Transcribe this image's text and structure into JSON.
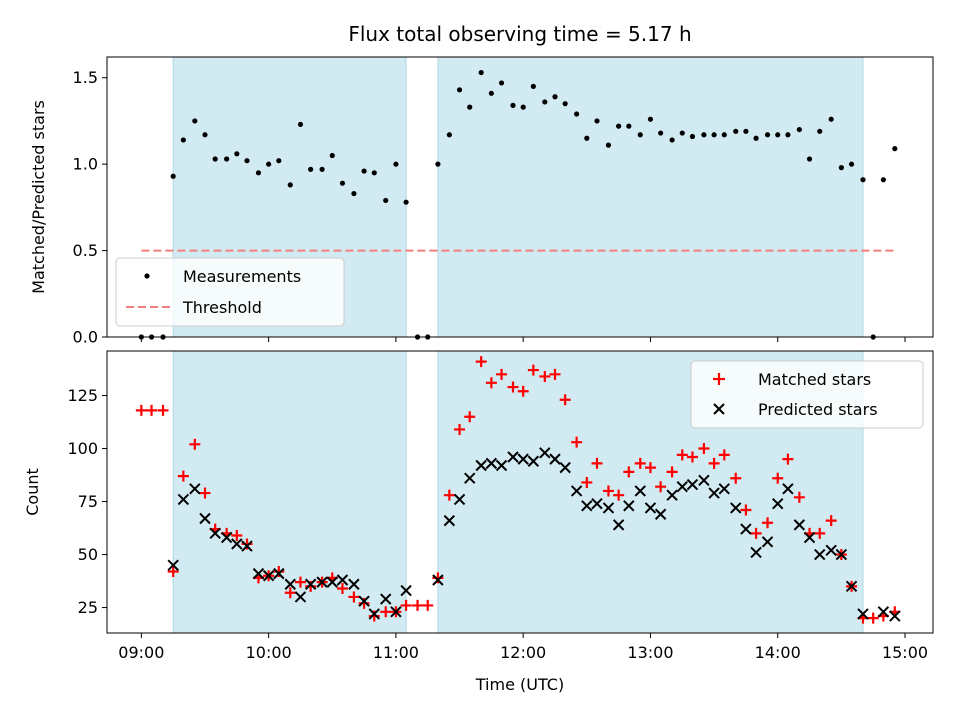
{
  "chart_data": {
    "type": "scatter",
    "title": "Flux total observing time = 5.17 h",
    "xlabel": "Time (UTC)",
    "x_unit": "hours UTC",
    "xlim": [
      8.73,
      15.22
    ],
    "x_ticks": [
      9,
      10,
      11,
      12,
      13,
      14,
      15
    ],
    "x_tick_labels": [
      "09:00",
      "10:00",
      "11:00",
      "12:00",
      "13:00",
      "14:00",
      "15:00"
    ],
    "shaded_intervals": [
      [
        9.25,
        11.08
      ],
      [
        11.33,
        14.67
      ]
    ],
    "shade_color": "#add8e6",
    "panels": [
      {
        "ylabel": "Matched/Predicted stars",
        "ylim": [
          0,
          1.62
        ],
        "y_ticks": [
          0.0,
          0.5,
          1.0,
          1.5
        ],
        "y_tick_labels": [
          "0.0",
          "0.5",
          "1.0",
          "1.5"
        ],
        "legend_position": "lower-left",
        "series": [
          {
            "name": "Measurements",
            "marker": "dot",
            "color": "#000000",
            "points": [
              [
                9.0,
                0.0
              ],
              [
                9.08,
                0.0
              ],
              [
                9.17,
                0.0
              ],
              [
                9.25,
                0.93
              ],
              [
                9.33,
                1.14
              ],
              [
                9.42,
                1.25
              ],
              [
                9.5,
                1.17
              ],
              [
                9.58,
                1.03
              ],
              [
                9.67,
                1.03
              ],
              [
                9.75,
                1.06
              ],
              [
                9.83,
                1.02
              ],
              [
                9.92,
                0.95
              ],
              [
                10.0,
                1.0
              ],
              [
                10.08,
                1.02
              ],
              [
                10.17,
                0.88
              ],
              [
                10.25,
                1.23
              ],
              [
                10.33,
                0.97
              ],
              [
                10.42,
                0.97
              ],
              [
                10.5,
                1.05
              ],
              [
                10.58,
                0.89
              ],
              [
                10.67,
                0.83
              ],
              [
                10.75,
                0.96
              ],
              [
                10.83,
                0.95
              ],
              [
                10.92,
                0.79
              ],
              [
                11.0,
                1.0
              ],
              [
                11.08,
                0.78
              ],
              [
                11.17,
                0.0
              ],
              [
                11.25,
                0.0
              ],
              [
                11.33,
                1.0
              ],
              [
                11.42,
                1.17
              ],
              [
                11.5,
                1.43
              ],
              [
                11.58,
                1.33
              ],
              [
                11.67,
                1.53
              ],
              [
                11.75,
                1.41
              ],
              [
                11.83,
                1.47
              ],
              [
                11.92,
                1.34
              ],
              [
                12.0,
                1.33
              ],
              [
                12.08,
                1.45
              ],
              [
                12.17,
                1.36
              ],
              [
                12.25,
                1.39
              ],
              [
                12.33,
                1.35
              ],
              [
                12.42,
                1.29
              ],
              [
                12.5,
                1.15
              ],
              [
                12.58,
                1.25
              ],
              [
                12.67,
                1.11
              ],
              [
                12.75,
                1.22
              ],
              [
                12.83,
                1.22
              ],
              [
                12.92,
                1.17
              ],
              [
                13.0,
                1.26
              ],
              [
                13.08,
                1.18
              ],
              [
                13.17,
                1.14
              ],
              [
                13.25,
                1.18
              ],
              [
                13.33,
                1.16
              ],
              [
                13.42,
                1.17
              ],
              [
                13.5,
                1.17
              ],
              [
                13.58,
                1.17
              ],
              [
                13.67,
                1.19
              ],
              [
                13.75,
                1.19
              ],
              [
                13.83,
                1.15
              ],
              [
                13.92,
                1.17
              ],
              [
                14.0,
                1.17
              ],
              [
                14.08,
                1.17
              ],
              [
                14.17,
                1.2
              ],
              [
                14.25,
                1.03
              ],
              [
                14.33,
                1.19
              ],
              [
                14.42,
                1.26
              ],
              [
                14.5,
                0.98
              ],
              [
                14.58,
                1.0
              ],
              [
                14.67,
                0.91
              ],
              [
                14.75,
                0.0
              ],
              [
                14.83,
                0.91
              ],
              [
                14.92,
                1.09
              ]
            ]
          },
          {
            "name": "Threshold",
            "marker": "dashed-line",
            "color": "#f08080",
            "points": [
              [
                9.0,
                0.5
              ],
              [
                14.92,
                0.5
              ]
            ]
          }
        ]
      },
      {
        "ylabel": "Count",
        "ylim": [
          13,
          146
        ],
        "y_ticks": [
          25,
          50,
          75,
          100,
          125
        ],
        "y_tick_labels": [
          "25",
          "50",
          "75",
          "100",
          "125"
        ],
        "legend_position": "upper-right",
        "series": [
          {
            "name": "Matched stars",
            "marker": "plus",
            "color": "#ff0000",
            "points": [
              [
                9.0,
                118
              ],
              [
                9.08,
                118
              ],
              [
                9.17,
                118
              ],
              [
                9.25,
                42
              ],
              [
                9.33,
                87
              ],
              [
                9.42,
                102
              ],
              [
                9.5,
                79
              ],
              [
                9.58,
                62
              ],
              [
                9.67,
                60
              ],
              [
                9.75,
                59
              ],
              [
                9.83,
                55
              ],
              [
                9.92,
                39
              ],
              [
                10.0,
                40
              ],
              [
                10.08,
                42
              ],
              [
                10.17,
                32
              ],
              [
                10.25,
                37
              ],
              [
                10.33,
                35
              ],
              [
                10.42,
                37
              ],
              [
                10.5,
                39
              ],
              [
                10.58,
                34
              ],
              [
                10.67,
                30
              ],
              [
                10.75,
                27
              ],
              [
                10.83,
                21
              ],
              [
                10.92,
                23
              ],
              [
                11.0,
                23
              ],
              [
                11.08,
                26
              ],
              [
                11.17,
                26
              ],
              [
                11.25,
                26
              ],
              [
                11.33,
                39
              ],
              [
                11.42,
                78
              ],
              [
                11.5,
                109
              ],
              [
                11.58,
                115
              ],
              [
                11.67,
                141
              ],
              [
                11.75,
                131
              ],
              [
                11.83,
                135
              ],
              [
                11.92,
                129
              ],
              [
                12.0,
                127
              ],
              [
                12.08,
                137
              ],
              [
                12.17,
                134
              ],
              [
                12.25,
                135
              ],
              [
                12.33,
                123
              ],
              [
                12.42,
                103
              ],
              [
                12.5,
                84
              ],
              [
                12.58,
                93
              ],
              [
                12.67,
                80
              ],
              [
                12.75,
                78
              ],
              [
                12.83,
                89
              ],
              [
                12.92,
                93
              ],
              [
                13.0,
                91
              ],
              [
                13.08,
                82
              ],
              [
                13.17,
                89
              ],
              [
                13.25,
                97
              ],
              [
                13.33,
                96
              ],
              [
                13.42,
                100
              ],
              [
                13.5,
                93
              ],
              [
                13.58,
                97
              ],
              [
                13.67,
                86
              ],
              [
                13.75,
                71
              ],
              [
                13.83,
                60
              ],
              [
                13.92,
                65
              ],
              [
                14.0,
                86
              ],
              [
                14.08,
                95
              ],
              [
                14.17,
                77
              ],
              [
                14.25,
                60
              ],
              [
                14.33,
                60
              ],
              [
                14.42,
                66
              ],
              [
                14.5,
                50
              ],
              [
                14.58,
                35
              ],
              [
                14.67,
                20
              ],
              [
                14.75,
                20
              ],
              [
                14.83,
                21
              ],
              [
                14.92,
                23
              ]
            ]
          },
          {
            "name": "Predicted stars",
            "marker": "x",
            "color": "#000000",
            "points": [
              [
                9.25,
                45
              ],
              [
                9.33,
                76
              ],
              [
                9.42,
                81
              ],
              [
                9.5,
                67
              ],
              [
                9.58,
                60
              ],
              [
                9.67,
                58
              ],
              [
                9.75,
                55
              ],
              [
                9.83,
                54
              ],
              [
                9.92,
                41
              ],
              [
                10.0,
                40
              ],
              [
                10.08,
                41
              ],
              [
                10.17,
                36
              ],
              [
                10.25,
                30
              ],
              [
                10.33,
                36
              ],
              [
                10.42,
                37
              ],
              [
                10.5,
                37
              ],
              [
                10.58,
                38
              ],
              [
                10.67,
                36
              ],
              [
                10.75,
                28
              ],
              [
                10.83,
                22
              ],
              [
                10.92,
                29
              ],
              [
                11.0,
                23
              ],
              [
                11.08,
                33
              ],
              [
                11.33,
                38
              ],
              [
                11.42,
                66
              ],
              [
                11.5,
                76
              ],
              [
                11.58,
                86
              ],
              [
                11.67,
                92
              ],
              [
                11.75,
                93
              ],
              [
                11.83,
                92
              ],
              [
                11.92,
                96
              ],
              [
                12.0,
                95
              ],
              [
                12.08,
                94
              ],
              [
                12.17,
                98
              ],
              [
                12.25,
                95
              ],
              [
                12.33,
                91
              ],
              [
                12.42,
                80
              ],
              [
                12.5,
                73
              ],
              [
                12.58,
                74
              ],
              [
                12.67,
                72
              ],
              [
                12.75,
                64
              ],
              [
                12.83,
                73
              ],
              [
                12.92,
                80
              ],
              [
                13.0,
                72
              ],
              [
                13.08,
                69
              ],
              [
                13.17,
                78
              ],
              [
                13.25,
                82
              ],
              [
                13.33,
                83
              ],
              [
                13.42,
                85
              ],
              [
                13.5,
                79
              ],
              [
                13.58,
                81
              ],
              [
                13.67,
                72
              ],
              [
                13.75,
                62
              ],
              [
                13.83,
                51
              ],
              [
                13.92,
                56
              ],
              [
                14.0,
                74
              ],
              [
                14.08,
                81
              ],
              [
                14.17,
                64
              ],
              [
                14.25,
                58
              ],
              [
                14.33,
                50
              ],
              [
                14.42,
                52
              ],
              [
                14.5,
                50
              ],
              [
                14.58,
                35
              ],
              [
                14.67,
                22
              ],
              [
                14.83,
                23
              ],
              [
                14.92,
                21
              ]
            ]
          }
        ]
      }
    ]
  }
}
